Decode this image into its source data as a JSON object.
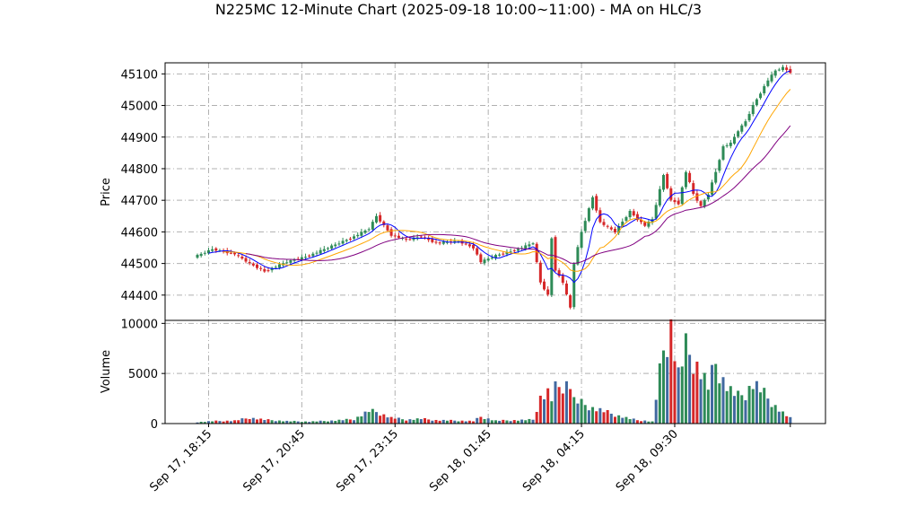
{
  "chart_data": {
    "type": "candlestick",
    "title": "N225MC 12-Minute Chart (2025-09-18 10:00~11:00) - MA on HLC/3",
    "price_panel": {
      "ylabel": "Price",
      "ylim": [
        44320,
        45135
      ],
      "yticks": [
        "44400",
        "44500",
        "44600",
        "44700",
        "44800",
        "44900",
        "45000",
        "45100"
      ],
      "ytick_values": [
        44400,
        44500,
        44600,
        44700,
        44800,
        44900,
        45000,
        45100
      ]
    },
    "volume_panel": {
      "ylabel": "Volume",
      "ylim": [
        0,
        10300
      ],
      "yticks": [
        "0",
        "5000",
        "10000"
      ],
      "ytick_values": [
        0,
        5000,
        10000
      ]
    },
    "xticks": [
      "Sep 17, 18:15",
      "Sep 17, 20:45",
      "Sep 17, 23:15",
      "Sep 18, 01:45",
      "Sep 18, 04:15",
      "Sep 18, 09:30"
    ],
    "xtick_index": [
      3,
      28,
      53,
      78,
      103,
      128
    ],
    "grid": true,
    "colors": {
      "up": "#2e8b57",
      "down": "#d62728",
      "ma_short": "#0000ff",
      "ma_mid": "#ffa500",
      "ma_long": "#800080",
      "volume_alt": "#4169a0"
    },
    "anchors": [
      [
        0,
        44525,
        150
      ],
      [
        4,
        44545,
        250
      ],
      [
        10,
        44530,
        300
      ],
      [
        14,
        44500,
        600
      ],
      [
        18,
        44475,
        400
      ],
      [
        24,
        44505,
        250
      ],
      [
        30,
        44525,
        200
      ],
      [
        36,
        44555,
        300
      ],
      [
        42,
        44585,
        450
      ],
      [
        46,
        44610,
        1300
      ],
      [
        48,
        44650,
        1200
      ],
      [
        52,
        44590,
        600
      ],
      [
        56,
        44575,
        400
      ],
      [
        60,
        44585,
        500
      ],
      [
        64,
        44565,
        350
      ],
      [
        70,
        44570,
        300
      ],
      [
        74,
        44550,
        250
      ],
      [
        76,
        44505,
        700
      ],
      [
        80,
        44525,
        300
      ],
      [
        86,
        44545,
        350
      ],
      [
        90,
        44565,
        400
      ],
      [
        92,
        44440,
        2700
      ],
      [
        94,
        44400,
        3200
      ],
      [
        95,
        44580,
        2500
      ],
      [
        96,
        44480,
        3600
      ],
      [
        98,
        44440,
        4000
      ],
      [
        100,
        44360,
        4200
      ],
      [
        101,
        44500,
        2400
      ],
      [
        103,
        44600,
        2100
      ],
      [
        106,
        44710,
        1600
      ],
      [
        108,
        44630,
        1400
      ],
      [
        112,
        44600,
        900
      ],
      [
        116,
        44665,
        500
      ],
      [
        118,
        44640,
        350
      ],
      [
        120,
        44620,
        300
      ],
      [
        122,
        44640,
        200
      ],
      [
        125,
        44780,
        7600
      ],
      [
        127,
        44700,
        10100
      ],
      [
        129,
        44690,
        5100
      ],
      [
        131,
        44790,
        7700
      ],
      [
        133,
        44720,
        6600
      ],
      [
        135,
        44680,
        5400
      ],
      [
        137,
        44720,
        3800
      ],
      [
        139,
        44790,
        6200
      ],
      [
        141,
        44870,
        4500
      ],
      [
        143,
        44880,
        3400
      ],
      [
        145,
        44920,
        2800
      ],
      [
        147,
        44950,
        3100
      ],
      [
        149,
        45000,
        4200
      ],
      [
        151,
        45040,
        3500
      ],
      [
        153,
        45080,
        2600
      ],
      [
        155,
        45110,
        1800
      ],
      [
        157,
        45120,
        1100
      ],
      [
        159,
        45105,
        550
      ]
    ]
  }
}
